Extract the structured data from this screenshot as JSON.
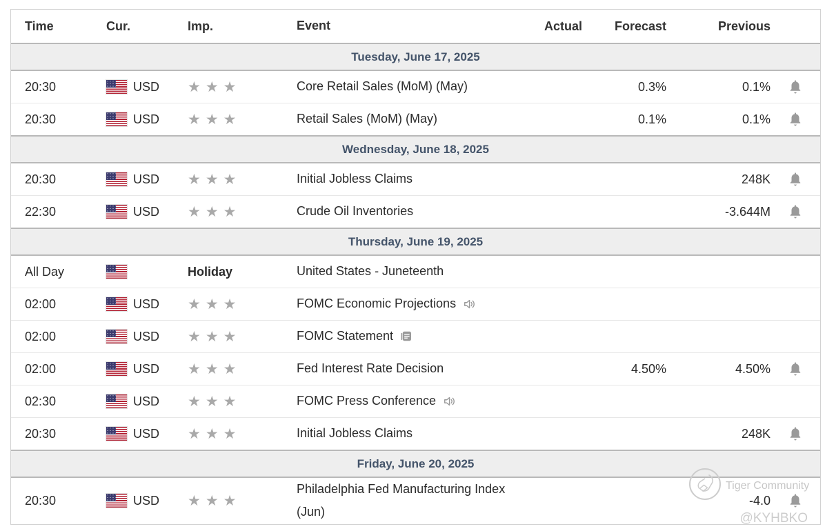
{
  "table": {
    "columns": {
      "time": "Time",
      "cur": "Cur.",
      "imp": "Imp.",
      "event": "Event",
      "actual": "Actual",
      "forecast": "Forecast",
      "previous": "Previous"
    },
    "sections": [
      {
        "date": "Tuesday, June 17, 2025",
        "rows": [
          {
            "time": "20:30",
            "flag": "US",
            "currency": "USD",
            "importance": 3,
            "event": "Core Retail Sales (MoM) (May)",
            "event_icon": null,
            "actual": "",
            "forecast": "0.3%",
            "previous": "0.1%",
            "bell": true
          },
          {
            "time": "20:30",
            "flag": "US",
            "currency": "USD",
            "importance": 3,
            "event": "Retail Sales (MoM) (May)",
            "event_icon": null,
            "actual": "",
            "forecast": "0.1%",
            "previous": "0.1%",
            "bell": true
          }
        ]
      },
      {
        "date": "Wednesday, June 18, 2025",
        "rows": [
          {
            "time": "20:30",
            "flag": "US",
            "currency": "USD",
            "importance": 3,
            "event": "Initial Jobless Claims",
            "event_icon": null,
            "actual": "",
            "forecast": "",
            "previous": "248K",
            "bell": true
          },
          {
            "time": "22:30",
            "flag": "US",
            "currency": "USD",
            "importance": 3,
            "event": "Crude Oil Inventories",
            "event_icon": null,
            "actual": "",
            "forecast": "",
            "previous": "-3.644M",
            "bell": true
          }
        ]
      },
      {
        "date": "Thursday, June 19, 2025",
        "rows": [
          {
            "time": "All Day",
            "flag": "US",
            "currency": "",
            "importance": 0,
            "importance_label": "Holiday",
            "event": "United States - Juneteenth",
            "event_icon": null,
            "actual": "",
            "forecast": "",
            "previous": "",
            "bell": false
          },
          {
            "time": "02:00",
            "flag": "US",
            "currency": "USD",
            "importance": 3,
            "event": "FOMC Economic Projections",
            "event_icon": "speaker-icon",
            "actual": "",
            "forecast": "",
            "previous": "",
            "bell": false
          },
          {
            "time": "02:00",
            "flag": "US",
            "currency": "USD",
            "importance": 3,
            "event": "FOMC Statement",
            "event_icon": "report-icon",
            "actual": "",
            "forecast": "",
            "previous": "",
            "bell": false
          },
          {
            "time": "02:00",
            "flag": "US",
            "currency": "USD",
            "importance": 3,
            "event": "Fed Interest Rate Decision",
            "event_icon": null,
            "actual": "",
            "forecast": "4.50%",
            "previous": "4.50%",
            "bell": true
          },
          {
            "time": "02:30",
            "flag": "US",
            "currency": "USD",
            "importance": 3,
            "event": "FOMC Press Conference",
            "event_icon": "speaker-icon",
            "actual": "",
            "forecast": "",
            "previous": "",
            "bell": false
          },
          {
            "time": "20:30",
            "flag": "US",
            "currency": "USD",
            "importance": 3,
            "event": "Initial Jobless Claims",
            "event_icon": null,
            "actual": "",
            "forecast": "",
            "previous": "248K",
            "bell": true
          }
        ]
      },
      {
        "date": "Friday, June 20, 2025",
        "rows": [
          {
            "time": "20:30",
            "flag": "US",
            "currency": "USD",
            "importance": 3,
            "event": "Philadelphia Fed Manufacturing Index (Jun)",
            "event_icon": null,
            "actual": "",
            "forecast": "",
            "previous": "-4.0",
            "bell": true
          }
        ]
      }
    ]
  },
  "icons": {
    "star": "star-icon",
    "bell": "alert-bell-icon",
    "flag": "us-flag-icon",
    "speaker": "speaker-icon",
    "report": "report-icon"
  },
  "watermark": {
    "brand": "Tiger Community",
    "handle": "@KYHBKO"
  },
  "colors": {
    "section_text": "#44546a",
    "section_bg": "#eeeeee",
    "section_border": "#b9b9b9",
    "row_border": "#e7e7e7",
    "star": "#a9a9a9",
    "icon_gray": "#9a9a9a",
    "flag_red": "#b22234",
    "flag_blue": "#3c3b6e",
    "watermark_gray": "#c9c9c9"
  }
}
